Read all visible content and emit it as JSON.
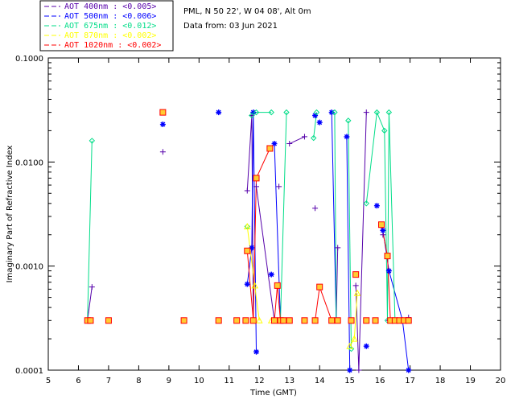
{
  "chart_data": {
    "type": "scatter",
    "xlabel": "Time (GMT)",
    "ylabel": "Imaginary Part of Refractive Index",
    "xlim": [
      5,
      20
    ],
    "ylim": [
      0.0001,
      0.1
    ],
    "y_scale": "log",
    "x_ticks": [
      "5",
      "6",
      "7",
      "8",
      "9",
      "10",
      "11",
      "12",
      "13",
      "14",
      "15",
      "16",
      "17",
      "18",
      "19",
      "20"
    ],
    "y_ticks": [
      {
        "value": 0.0001,
        "label": "0.0001"
      },
      {
        "value": 0.001,
        "label": "0.0010"
      },
      {
        "value": 0.01,
        "label": "0.0100"
      },
      {
        "value": 0.1,
        "label": "0.1000"
      }
    ],
    "info": {
      "site": "PML, N 50 22', W 04 08', Alt 0m",
      "date": "Data from: 03 Jun 2021"
    },
    "legend_position": "top-left, outside plot",
    "series": [
      {
        "name": "AOT  400nm : <0.005>",
        "color": "#5500aa",
        "marker": "plus",
        "points": [
          [
            6.3,
            0.0003
          ],
          [
            6.45,
            0.00063
          ],
          [
            8.8,
            0.0125
          ],
          [
            9.5,
            0.0003
          ],
          [
            11.25,
            0.0003
          ],
          [
            11.6,
            0.0053
          ],
          [
            11.75,
            0.028
          ],
          [
            11.8,
            0.0003
          ],
          [
            11.9,
            0.0058
          ],
          [
            12.5,
            0.0003
          ],
          [
            12.65,
            0.0058
          ],
          [
            12.7,
            0.0003
          ],
          [
            13.0,
            0.015
          ],
          [
            13.5,
            0.0175
          ],
          [
            13.85,
            0.0036
          ],
          [
            14.5,
            0.0003
          ],
          [
            14.55,
            0.0003
          ],
          [
            14.6,
            0.0015
          ],
          [
            15.05,
            0.0003
          ],
          [
            15.2,
            0.00065
          ],
          [
            15.3,
            0.0001
          ],
          [
            15.55,
            0.03
          ],
          [
            16.1,
            0.002
          ],
          [
            16.3,
            0.0003
          ],
          [
            16.6,
            0.0003
          ],
          [
            16.95,
            0.00032
          ]
        ]
      },
      {
        "name": "AOT  500nm : <0.006>",
        "color": "#0000ff",
        "marker": "star",
        "points": [
          [
            6.35,
            0.0003
          ],
          [
            8.8,
            0.023
          ],
          [
            10.65,
            0.03
          ],
          [
            11.6,
            0.00067
          ],
          [
            11.75,
            0.0015
          ],
          [
            11.8,
            0.03
          ],
          [
            11.9,
            0.00015
          ],
          [
            12.4,
            0.00083
          ],
          [
            12.5,
            0.015
          ],
          [
            12.7,
            0.0003
          ],
          [
            13.85,
            0.028
          ],
          [
            14.0,
            0.024
          ],
          [
            14.4,
            0.03
          ],
          [
            14.55,
            0.0003
          ],
          [
            14.9,
            0.0175
          ],
          [
            15.0,
            0.0001
          ],
          [
            15.55,
            0.00017
          ],
          [
            15.9,
            0.0038
          ],
          [
            16.1,
            0.0022
          ],
          [
            16.3,
            0.0009
          ],
          [
            16.75,
            0.0003
          ],
          [
            16.95,
            0.0001
          ]
        ]
      },
      {
        "name": "AOT  675nm : <0.012>",
        "color": "#00dd88",
        "marker": "diamond",
        "points": [
          [
            6.3,
            0.0003
          ],
          [
            6.45,
            0.016
          ],
          [
            8.8,
            0.03
          ],
          [
            11.6,
            0.0024
          ],
          [
            11.75,
            0.028
          ],
          [
            11.9,
            0.03
          ],
          [
            12.4,
            0.03
          ],
          [
            12.5,
            0.0003
          ],
          [
            12.7,
            0.0003
          ],
          [
            12.9,
            0.03
          ],
          [
            13.8,
            0.017
          ],
          [
            13.9,
            0.03
          ],
          [
            14.5,
            0.03
          ],
          [
            14.55,
            0.0003
          ],
          [
            14.95,
            0.025
          ],
          [
            15.05,
            0.00016
          ],
          [
            15.55,
            0.004
          ],
          [
            15.9,
            0.03
          ],
          [
            16.15,
            0.02
          ],
          [
            16.25,
            0.0003
          ],
          [
            16.3,
            0.03
          ],
          [
            16.5,
            0.0003
          ],
          [
            16.8,
            0.0003
          ]
        ]
      },
      {
        "name": "AOT  870nm : <0.002>",
        "color": "#ffff00",
        "marker": "triangle",
        "points": [
          [
            11.6,
            0.0024
          ],
          [
            11.85,
            0.00065
          ],
          [
            12.0,
            0.0003
          ],
          [
            12.4,
            0.0003
          ],
          [
            12.6,
            0.0003
          ],
          [
            15.0,
            0.00017
          ],
          [
            15.15,
            0.0002
          ],
          [
            15.25,
            0.00055
          ]
        ]
      },
      {
        "name": "AOT 1020nm : <0.002>",
        "color": "#ff0000",
        "marker": "square",
        "points": [
          [
            6.3,
            0.0003
          ],
          [
            6.4,
            0.0003
          ],
          [
            7.0,
            0.0003
          ],
          [
            8.8,
            0.03
          ],
          [
            9.5,
            0.0003
          ],
          [
            10.65,
            0.0003
          ],
          [
            11.25,
            0.0003
          ],
          [
            11.55,
            0.0003
          ],
          [
            11.6,
            0.0014
          ],
          [
            11.8,
            0.0003
          ],
          [
            11.9,
            0.007
          ],
          [
            12.35,
            0.0135
          ],
          [
            12.5,
            0.0003
          ],
          [
            12.6,
            0.00065
          ],
          [
            12.7,
            0.0003
          ],
          [
            12.8,
            0.0003
          ],
          [
            13.0,
            0.0003
          ],
          [
            13.5,
            0.0003
          ],
          [
            13.85,
            0.0003
          ],
          [
            14.0,
            0.00063
          ],
          [
            14.4,
            0.0003
          ],
          [
            14.6,
            0.0003
          ],
          [
            15.05,
            0.0003
          ],
          [
            15.2,
            0.00083
          ],
          [
            15.55,
            0.0003
          ],
          [
            15.85,
            0.0003
          ],
          [
            16.05,
            0.0025
          ],
          [
            16.25,
            0.00125
          ],
          [
            16.35,
            0.0003
          ],
          [
            16.5,
            0.0003
          ],
          [
            16.65,
            0.0003
          ],
          [
            16.8,
            0.0003
          ],
          [
            16.95,
            0.0003
          ]
        ]
      }
    ],
    "series_segments": [
      {
        "series": 0,
        "runs": [
          [
            0,
            1
          ],
          [
            5,
            6,
            7
          ],
          [
            8,
            9
          ],
          [
            12,
            13
          ],
          [
            15,
            16,
            17
          ],
          [
            19,
            20,
            21
          ]
        ]
      },
      {
        "series": 1,
        "runs": [
          [
            3,
            4,
            5,
            6
          ],
          [
            8,
            9
          ],
          [
            12,
            13
          ],
          [
            14,
            15
          ],
          [
            18,
            19,
            20,
            21
          ]
        ]
      },
      {
        "series": 2,
        "runs": [
          [
            0,
            1
          ],
          [
            4,
            5
          ],
          [
            5,
            6
          ],
          [
            7,
            8,
            9
          ],
          [
            10,
            11
          ],
          [
            12,
            13
          ],
          [
            14,
            15
          ],
          [
            16,
            17,
            18
          ],
          [
            18,
            19,
            20
          ],
          [
            20,
            21
          ]
        ]
      },
      {
        "series": 3,
        "runs": [
          [
            0,
            1,
            2
          ],
          [
            3,
            4
          ],
          [
            5,
            6,
            7
          ]
        ]
      },
      {
        "series": 4,
        "runs": [
          [
            8,
            9,
            10
          ],
          [
            10,
            11
          ],
          [
            12,
            13,
            14
          ],
          [
            18,
            19
          ],
          [
            19,
            20
          ],
          [
            26,
            27,
            28,
            29
          ]
        ]
      }
    ]
  }
}
